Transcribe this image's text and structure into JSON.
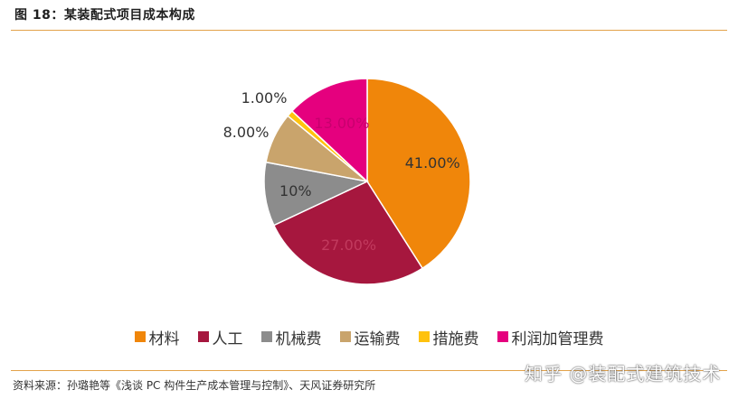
{
  "header": {
    "title": "图 18：某装配式项目成本构成"
  },
  "chart_data": {
    "type": "pie",
    "title": "",
    "slices": [
      {
        "name": "材料",
        "value": 41.0,
        "label": "41.00%",
        "color": "#f0860a"
      },
      {
        "name": "人工",
        "value": 27.0,
        "label": "27.00%",
        "color": "#a6173e"
      },
      {
        "name": "机械费",
        "value": 10.0,
        "label": "10%",
        "color": "#8c8c8c"
      },
      {
        "name": "运输费",
        "value": 8.0,
        "label": "8.00%",
        "color": "#c9a46c"
      },
      {
        "name": "措施费",
        "value": 1.0,
        "label": "1.00%",
        "color": "#ffc20e"
      },
      {
        "name": "利润加管理费",
        "value": 13.0,
        "label": "13.00%",
        "color": "#e5007e"
      }
    ],
    "legend_position": "bottom"
  },
  "footer": {
    "source": "资料来源：孙璐艳等《浅谈 PC 构件生产成本管理与控制》、天风证券研究所",
    "watermark": "知乎 @装配式建筑技术"
  }
}
